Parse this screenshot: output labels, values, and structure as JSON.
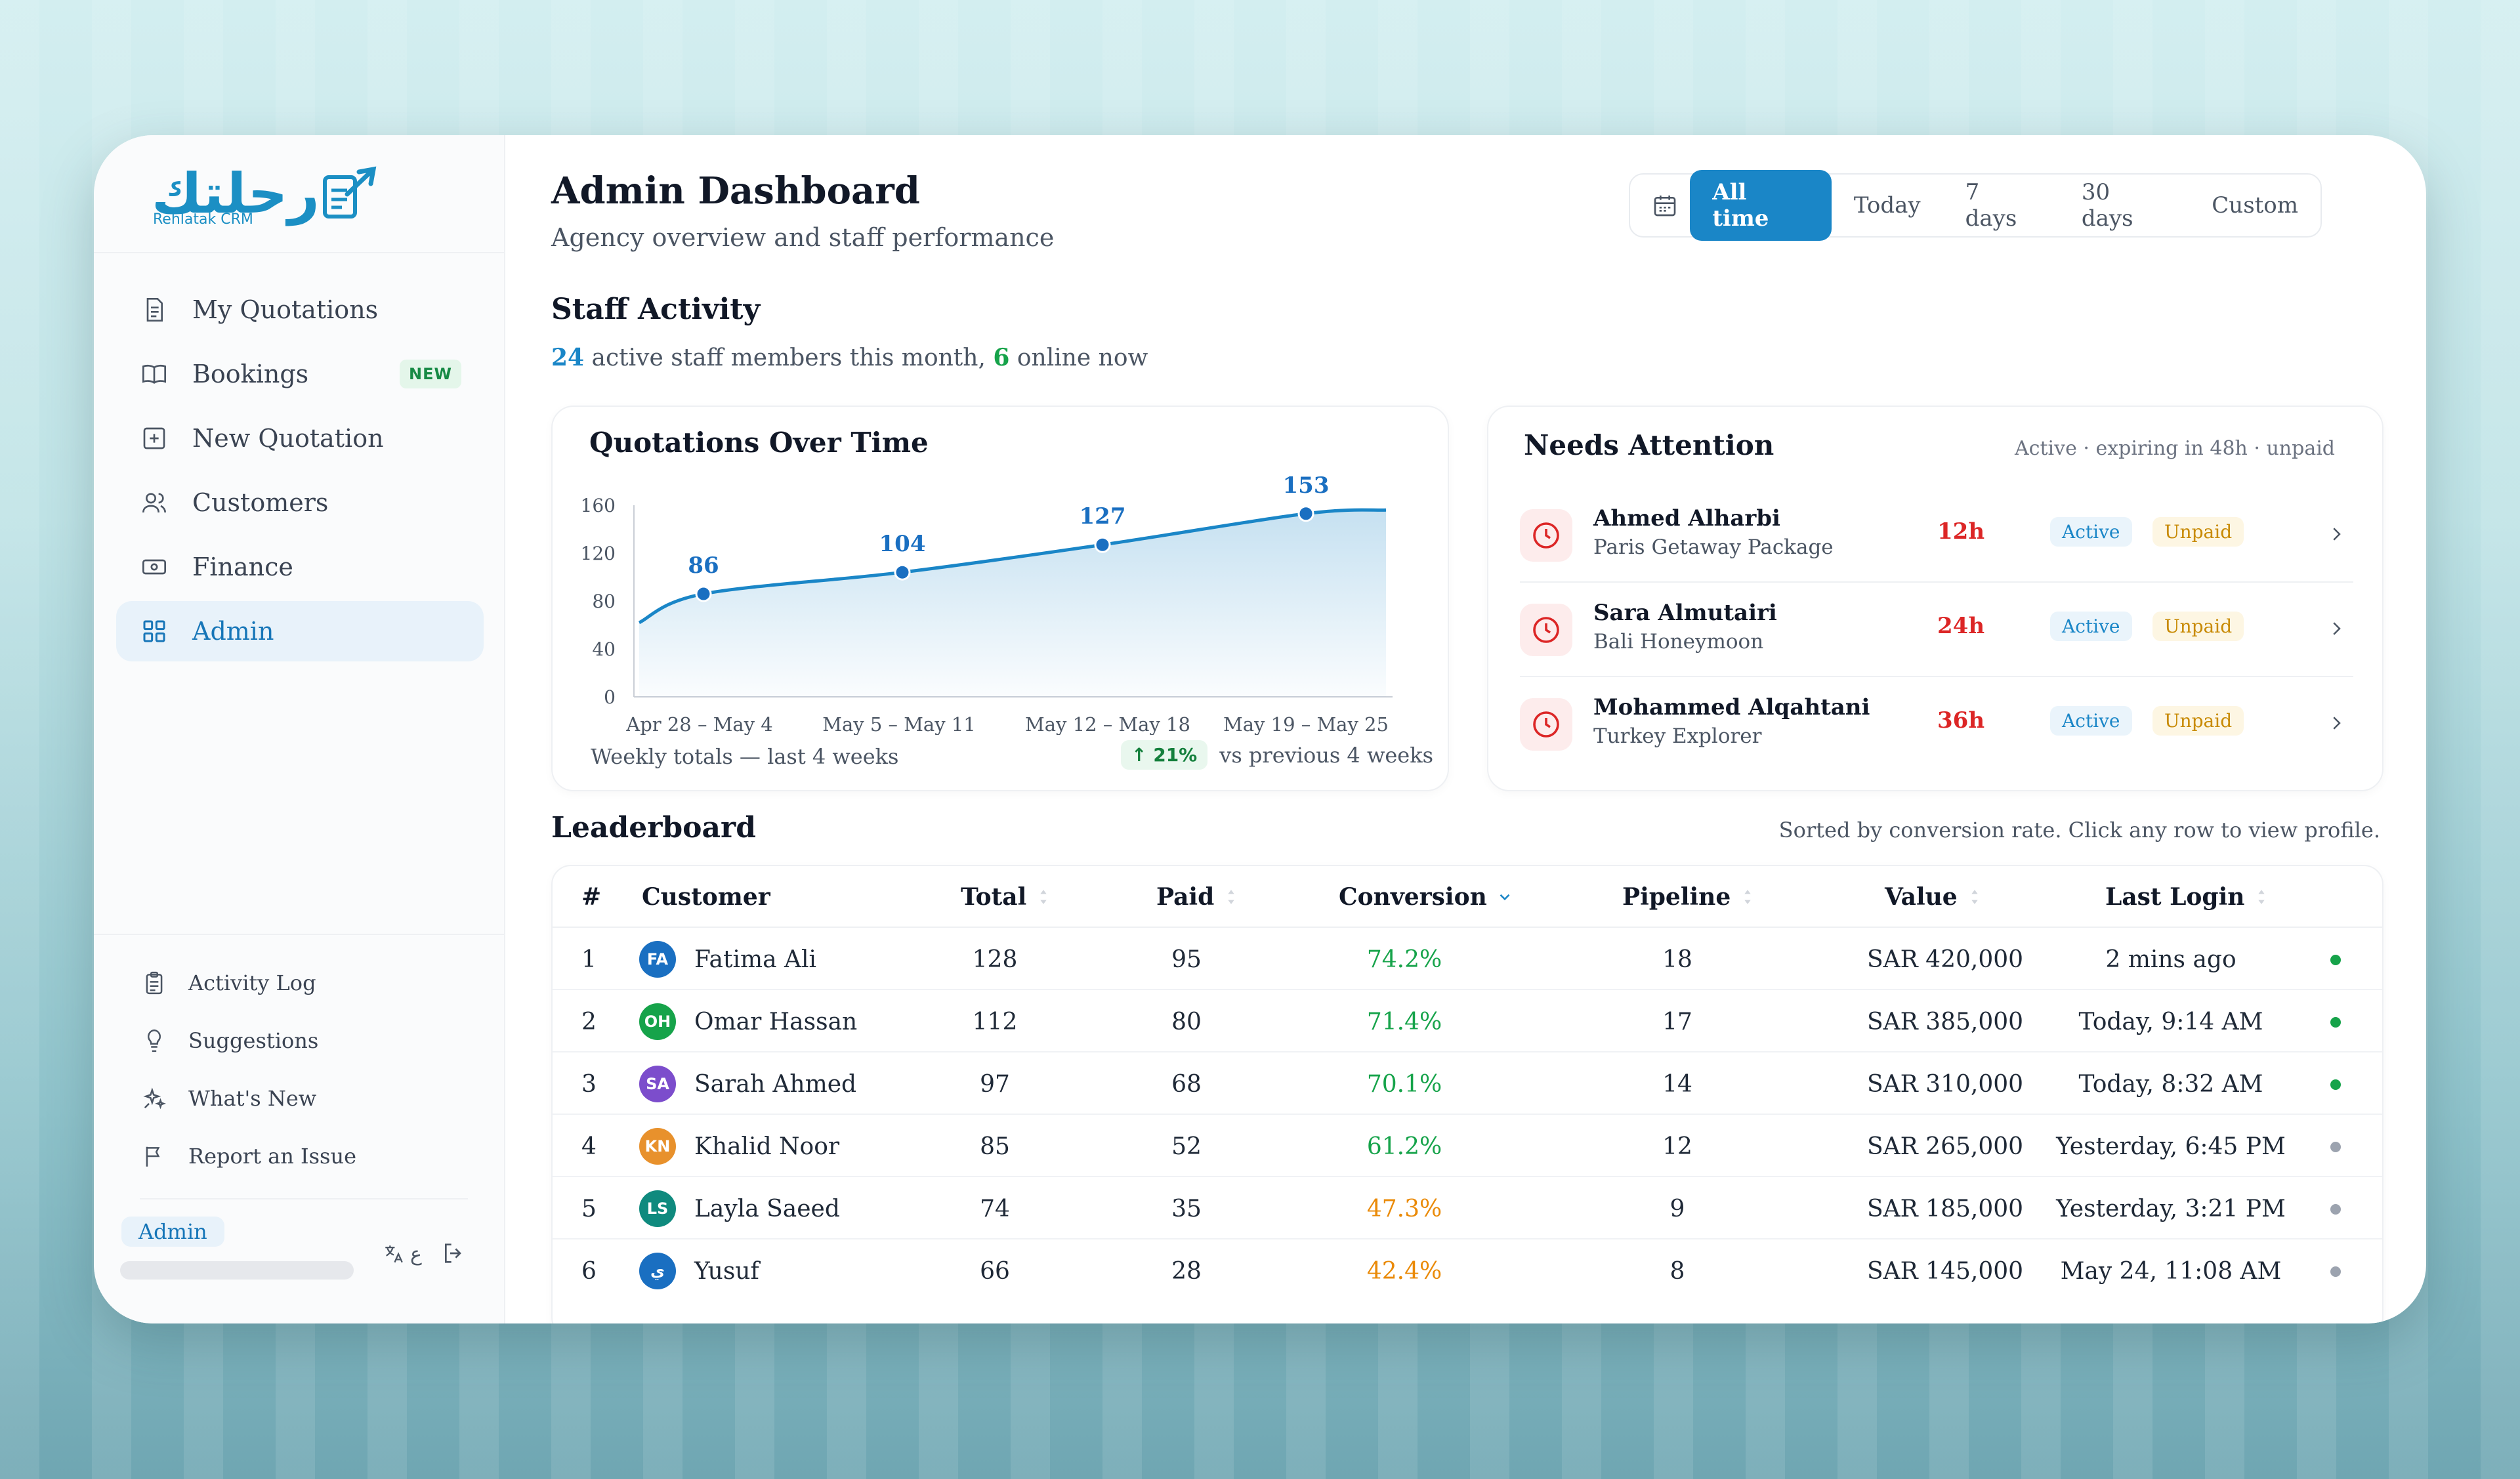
{
  "brand": {
    "logo_text": "رحلتك",
    "logo_sub": "Rehlatak CRM"
  },
  "colors": {
    "accent": "#1a86c7",
    "green": "#16a34a",
    "amber": "#ea8a07",
    "red": "#dc2626",
    "grey_dot": "#9ca3af"
  },
  "sidebar": {
    "items": [
      {
        "label": "My Quotations",
        "icon": "document-icon"
      },
      {
        "label": "Bookings",
        "icon": "book-icon",
        "badge": "NEW"
      },
      {
        "label": "New Quotation",
        "icon": "plus-square-icon"
      },
      {
        "label": "Customers",
        "icon": "users-icon"
      },
      {
        "label": "Finance",
        "icon": "cash-icon"
      },
      {
        "label": "Admin",
        "icon": "grid-icon",
        "active": true
      }
    ],
    "bottom_items": [
      {
        "label": "Activity Log",
        "icon": "clipboard-icon"
      },
      {
        "label": "Suggestions",
        "icon": "lightbulb-icon"
      },
      {
        "label": "What's New",
        "icon": "sparkles-icon"
      },
      {
        "label": "Report an Issue",
        "icon": "flag-icon"
      }
    ],
    "user_role": "Admin",
    "lang_label": "ع"
  },
  "header": {
    "title": "Admin Dashboard",
    "subtitle": "Agency overview and staff performance",
    "filters": [
      "All time",
      "Today",
      "7 days",
      "30 days",
      "Custom"
    ],
    "active_filter": "All time"
  },
  "staff": {
    "title": "Staff Activity",
    "active_count": "24",
    "active_text": " active staff members this month, ",
    "online_count": "6",
    "online_text": " online now"
  },
  "chart_data": {
    "type": "line",
    "title": "Quotations Over Time",
    "categories": [
      "Apr 28 – May 4",
      "May 5 – May 11",
      "May 12 – May 18",
      "May 19 – May 25"
    ],
    "values": [
      86,
      104,
      127,
      153
    ],
    "data_labels": [
      "86",
      "104",
      "127",
      "153"
    ],
    "y_ticks": [
      "160",
      "120",
      "80",
      "40",
      "0"
    ],
    "ylim": [
      0,
      160
    ],
    "start_value": 62,
    "end_value": 156,
    "grid": false,
    "footer": "Weekly totals — last 4 weeks",
    "delta": "↑ 21%",
    "delta_text": "vs previous 4 weeks"
  },
  "attention": {
    "title": "Needs Attention",
    "filter_text": "Active · expiring in 48h · unpaid",
    "rows": [
      {
        "name": "Ahmed Alharbi",
        "package": "Paris Getaway Package",
        "time": "12h",
        "status": "Active",
        "payment": "Unpaid"
      },
      {
        "name": "Sara Almutairi",
        "package": "Bali Honeymoon",
        "time": "24h",
        "status": "Active",
        "payment": "Unpaid"
      },
      {
        "name": "Mohammed Alqahtani",
        "package": "Turkey Explorer",
        "time": "36h",
        "status": "Active",
        "payment": "Unpaid"
      }
    ]
  },
  "leaderboard": {
    "title": "Leaderboard",
    "note": "Sorted by conversion rate. Click any row to view profile.",
    "columns": [
      "#",
      "Customer",
      "Total",
      "Paid",
      "Conversion",
      "Pipeline",
      "Value",
      "Last Login"
    ],
    "rows": [
      {
        "rank": "1",
        "initials": "FA",
        "avatar_color": "#1a6fc1",
        "name": "Fatima Ali",
        "total": "128",
        "paid": "95",
        "conversion": "74.2%",
        "conv_color": "#16a34a",
        "pipeline": "18",
        "value": "SAR 420,000",
        "last_login": "2 mins ago",
        "online": true
      },
      {
        "rank": "2",
        "initials": "OH",
        "avatar_color": "#16a34a",
        "name": "Omar Hassan",
        "total": "112",
        "paid": "80",
        "conversion": "71.4%",
        "conv_color": "#16a34a",
        "pipeline": "17",
        "value": "SAR 385,000",
        "last_login": "Today, 9:14 AM",
        "online": true
      },
      {
        "rank": "3",
        "initials": "SA",
        "avatar_color": "#7c4dcc",
        "name": "Sarah Ahmed",
        "total": "97",
        "paid": "68",
        "conversion": "70.1%",
        "conv_color": "#16a34a",
        "pipeline": "14",
        "value": "SAR 310,000",
        "last_login": "Today, 8:32 AM",
        "online": true
      },
      {
        "rank": "4",
        "initials": "KN",
        "avatar_color": "#e8912c",
        "name": "Khalid Noor",
        "total": "85",
        "paid": "52",
        "conversion": "61.2%",
        "conv_color": "#16a34a",
        "pipeline": "12",
        "value": "SAR 265,000",
        "last_login": "Yesterday, 6:45 PM",
        "online": false
      },
      {
        "rank": "5",
        "initials": "LS",
        "avatar_color": "#0f8a7e",
        "name": "Layla Saeed",
        "total": "74",
        "paid": "35",
        "conversion": "47.3%",
        "conv_color": "#ea8a07",
        "pipeline": "9",
        "value": "SAR 185,000",
        "last_login": "Yesterday, 3:21 PM",
        "online": false
      },
      {
        "rank": "6",
        "initials": "ي",
        "avatar_color": "#1a6fc1",
        "name": "Yusuf",
        "total": "66",
        "paid": "28",
        "conversion": "42.4%",
        "conv_color": "#ea8a07",
        "pipeline": "8",
        "value": "SAR 145,000",
        "last_login": "May 24, 11:08 AM",
        "online": false
      }
    ]
  }
}
